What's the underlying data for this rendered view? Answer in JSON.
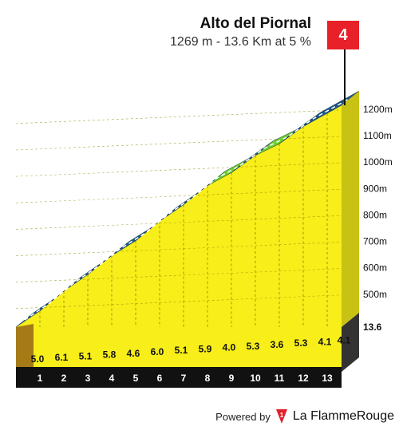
{
  "climb": {
    "number": "4",
    "name": "Alto del Piornal",
    "subtitle": "1269 m - 13.6 Km at 5 %"
  },
  "footer": {
    "powered_by": "Powered by",
    "brand_mark": "1",
    "brand": "La FlammeRouge"
  },
  "chart_data": {
    "type": "area",
    "title": "Alto del Piornal",
    "subtitle": "1269 m - 13.6 Km at 5 %",
    "ylim": [
      430,
      1269
    ],
    "y_ticks": [
      500,
      600,
      700,
      800,
      900,
      1000,
      1100,
      1200
    ],
    "y_tick_labels": [
      "500m",
      "600m",
      "700m",
      "800m",
      "900m",
      "1000m",
      "1100m",
      "1200m"
    ],
    "x_end_label": "13.6",
    "km_labels": [
      "1",
      "2",
      "3",
      "4",
      "5",
      "6",
      "7",
      "8",
      "9",
      "10",
      "11",
      "12",
      "13"
    ],
    "km_gradients": [
      5.0,
      6.1,
      5.1,
      5.8,
      4.6,
      6.0,
      5.1,
      5.9,
      4.0,
      5.3,
      3.6,
      5.3,
      4.1,
      4.1
    ],
    "gradient_labels": [
      "5.0",
      "6.1",
      "5.1",
      "5.8",
      "4.6",
      "6.0",
      "5.1",
      "5.9",
      "4.0",
      "5.3",
      "3.6",
      "5.3",
      "4.1",
      "4.1"
    ],
    "km_colors": [
      "#1f5a8a",
      "#e0202a",
      "#1f5a8a",
      "#1f5a8a",
      "#1f5a8a",
      "#1f5a8a",
      "#1f5a8a",
      "#1f5a8a",
      "#6ccf2e",
      "#1f5a8a",
      "#6ccf2e",
      "#1f5a8a",
      "#1f5a8a",
      "#1f5a8a"
    ],
    "fill_color": "#f7ee1a",
    "base_color": "#a57a17",
    "axis_color": "#111111"
  }
}
